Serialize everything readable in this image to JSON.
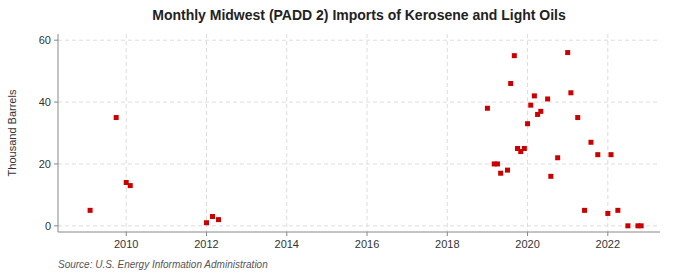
{
  "chart_data": {
    "type": "scatter",
    "title": "Monthly Midwest (PADD 2) Imports of Kerosene and Light Oils",
    "ylabel": "Thousand Barrels",
    "source": "Source: U.S. Energy Information Administration",
    "x": [
      2009.1,
      2009.75,
      2010.0,
      2010.1,
      2012.0,
      2012.15,
      2012.3,
      2019.0,
      2019.17,
      2019.25,
      2019.33,
      2019.5,
      2019.58,
      2019.67,
      2019.75,
      2019.83,
      2019.92,
      2020.0,
      2020.08,
      2020.17,
      2020.25,
      2020.33,
      2020.5,
      2020.58,
      2020.75,
      2021.0,
      2021.08,
      2021.25,
      2021.42,
      2021.58,
      2021.75,
      2022.0,
      2022.08,
      2022.25,
      2022.5,
      2022.75,
      2022.83
    ],
    "values": [
      5,
      35,
      14,
      13,
      1,
      3,
      2,
      38,
      20,
      20,
      17,
      18,
      46,
      55,
      25,
      24,
      25,
      33,
      39,
      42,
      36,
      37,
      41,
      16,
      22,
      56,
      43,
      35,
      5,
      27,
      23,
      4,
      23,
      5,
      0,
      0,
      0
    ],
    "xlim": [
      2008.3,
      2023.3
    ],
    "xticks": [
      2010,
      2012,
      2014,
      2016,
      2018,
      2020,
      2022
    ],
    "ylim": [
      -2,
      62
    ],
    "yticks": [
      0,
      20,
      40,
      60
    ],
    "color": "#cc0000",
    "marker": "square",
    "grid": true
  }
}
